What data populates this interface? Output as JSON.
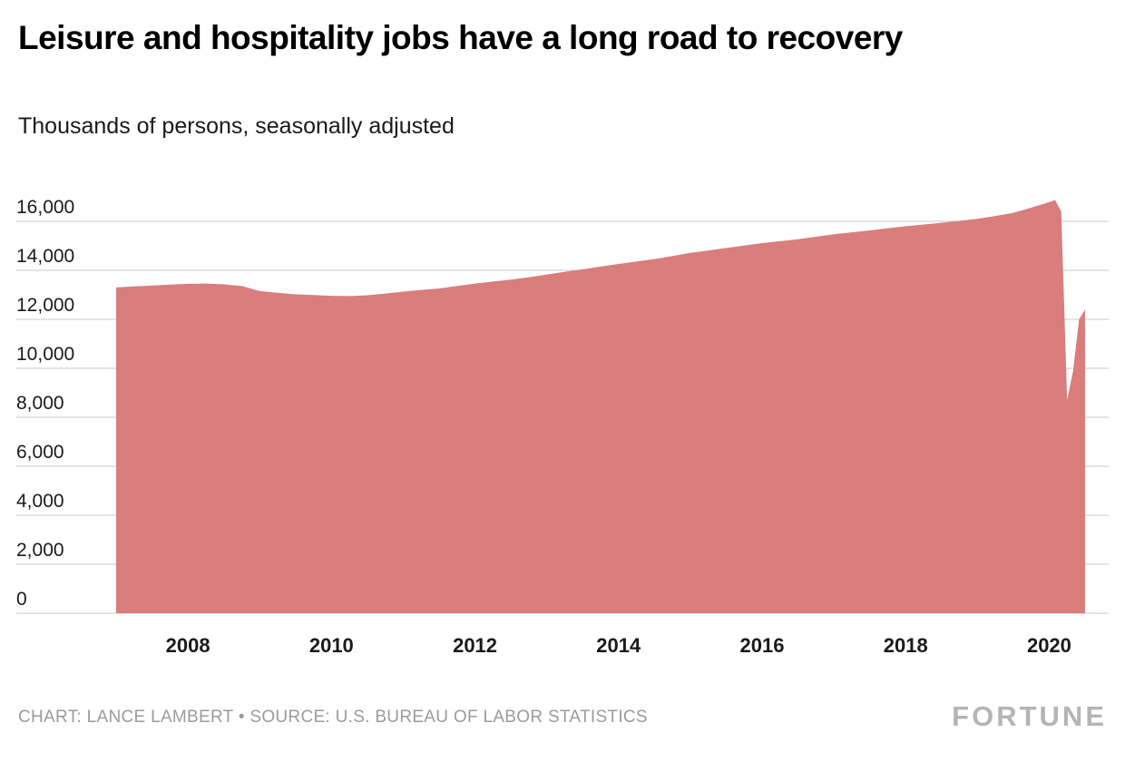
{
  "header": {
    "title": "Leisure and hospitality jobs have a long road to recovery",
    "subtitle": "Thousands of persons, seasonally adjusted"
  },
  "chart_data": {
    "type": "area",
    "title": "Leisure and hospitality jobs have a long road to recovery",
    "subtitle": "Thousands of persons, seasonally adjusted",
    "xlabel": "",
    "ylabel": "Thousands of persons, seasonally adjusted",
    "series_name": "Leisure and hospitality employment (thousands of persons)",
    "legend": "none",
    "grid": "horizontal",
    "xlim": [
      2007,
      2020.5
    ],
    "ylim": [
      0,
      16000
    ],
    "x": [
      2007.0,
      2007.25,
      2007.5,
      2007.75,
      2008.0,
      2008.25,
      2008.5,
      2008.75,
      2009.0,
      2009.25,
      2009.5,
      2009.75,
      2010.0,
      2010.25,
      2010.5,
      2010.75,
      2011.0,
      2011.25,
      2011.5,
      2011.75,
      2012.0,
      2012.25,
      2012.5,
      2012.75,
      2013.0,
      2013.25,
      2013.5,
      2013.75,
      2014.0,
      2014.25,
      2014.5,
      2014.75,
      2015.0,
      2015.25,
      2015.5,
      2015.75,
      2016.0,
      2016.25,
      2016.5,
      2016.75,
      2017.0,
      2017.25,
      2017.5,
      2017.75,
      2018.0,
      2018.25,
      2018.5,
      2018.75,
      2019.0,
      2019.25,
      2019.5,
      2019.75,
      2020.0,
      2020.083,
      2020.167,
      2020.25,
      2020.333,
      2020.417,
      2020.5
    ],
    "values": [
      13300,
      13340,
      13380,
      13420,
      13450,
      13460,
      13430,
      13360,
      13150,
      13080,
      13020,
      12990,
      12960,
      12950,
      12980,
      13050,
      13130,
      13200,
      13260,
      13360,
      13460,
      13540,
      13620,
      13720,
      13830,
      13940,
      14040,
      14150,
      14260,
      14360,
      14460,
      14580,
      14710,
      14810,
      14910,
      15010,
      15110,
      15190,
      15270,
      15370,
      15470,
      15550,
      15630,
      15720,
      15800,
      15870,
      15940,
      16020,
      16100,
      16220,
      16350,
      16560,
      16780,
      16870,
      16400,
      8700,
      9900,
      12000,
      12400
    ],
    "y_ticks": {
      "values": [
        0,
        2000,
        4000,
        6000,
        8000,
        10000,
        12000,
        14000,
        16000
      ],
      "labels": [
        "0",
        "2,000",
        "4,000",
        "6,000",
        "8,000",
        "10,000",
        "12,000",
        "14,000",
        "16,000"
      ]
    },
    "x_ticks": {
      "values": [
        2008,
        2010,
        2012,
        2014,
        2016,
        2018,
        2020
      ],
      "labels": [
        "2008",
        "2010",
        "2012",
        "2014",
        "2016",
        "2018",
        "2020"
      ]
    },
    "colors": {
      "area": "#d97d7d",
      "grid": "#c9c9c9",
      "axis_text": "#1a1a1a",
      "muted_text": "#9b9b9b"
    }
  },
  "footer": {
    "credit": "CHART: LANCE LAMBERT • SOURCE: U.S. BUREAU OF LABOR STATISTICS",
    "brand": "FORTUNE"
  }
}
